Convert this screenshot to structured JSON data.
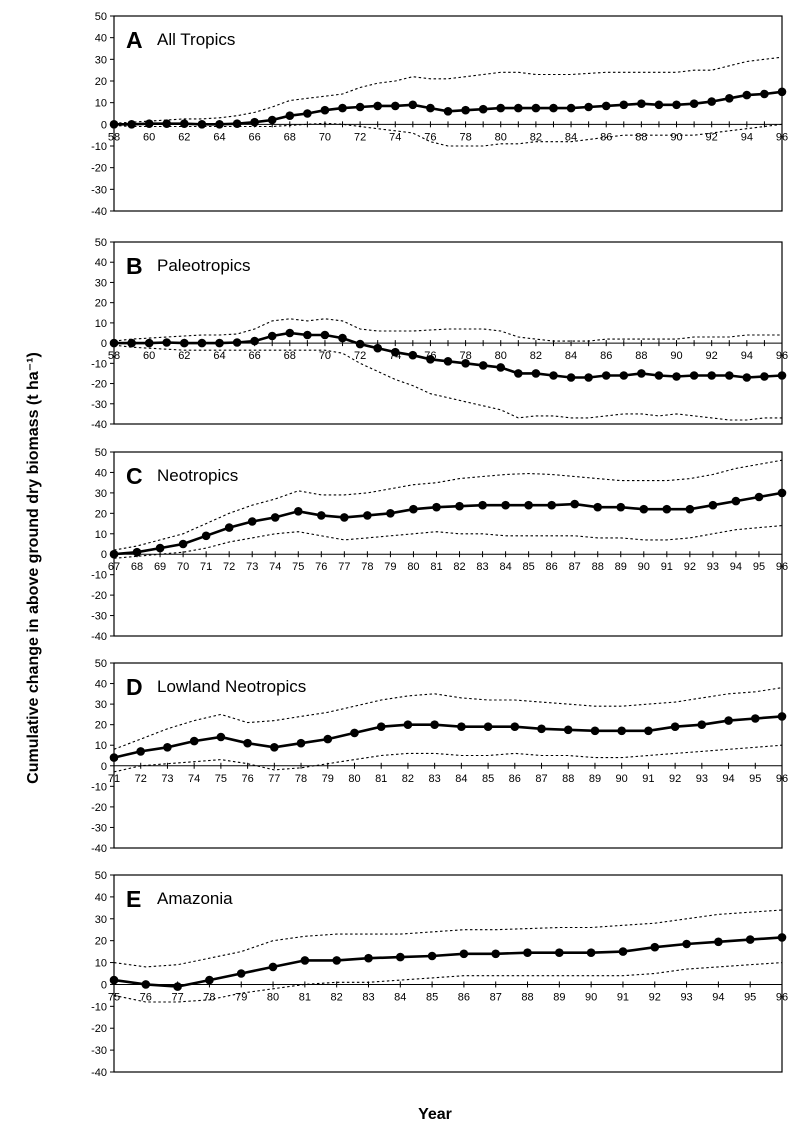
{
  "figure": {
    "ylabel": "Cumulative change in above ground dry biomass (t ha⁻¹)",
    "xlabel": "Year"
  },
  "chart_data": [
    {
      "type": "line",
      "letter": "A",
      "title": "All Tropics",
      "ylim": [
        -40,
        50
      ],
      "yticks": [
        -40,
        -30,
        -20,
        -10,
        0,
        10,
        20,
        30,
        40,
        50
      ],
      "x": [
        58,
        59,
        60,
        61,
        62,
        63,
        64,
        65,
        66,
        67,
        68,
        69,
        70,
        71,
        72,
        73,
        74,
        75,
        76,
        77,
        78,
        79,
        80,
        81,
        82,
        83,
        84,
        85,
        86,
        87,
        88,
        89,
        90,
        91,
        92,
        93,
        94,
        95,
        96
      ],
      "xtick_labels": [
        "58",
        "60",
        "62",
        "64",
        "66",
        "68",
        "70",
        "72",
        "74",
        "76",
        "78",
        "80",
        "82",
        "84",
        "86",
        "88",
        "90",
        "92",
        "94",
        "96"
      ],
      "series": [
        {
          "role": "mean",
          "style": "solid-markers",
          "values": [
            0,
            0,
            0.3,
            0.3,
            0.3,
            0,
            0,
            0.3,
            1,
            2,
            4,
            5,
            6.5,
            7.5,
            8,
            8.5,
            8.5,
            9,
            7.5,
            6,
            6.5,
            7,
            7.5,
            7.5,
            7.5,
            7.5,
            7.5,
            8,
            8.5,
            9,
            9.5,
            9,
            9,
            9.5,
            10.5,
            12,
            13.5,
            14,
            15
          ]
        },
        {
          "role": "upper",
          "style": "dotted",
          "values": [
            0.5,
            1,
            1.5,
            2,
            2.5,
            2.5,
            3,
            4,
            5.5,
            8,
            11,
            12,
            13,
            14,
            17,
            19,
            20,
            22,
            21,
            21,
            22,
            23,
            24,
            24,
            23,
            23,
            23,
            23.5,
            24,
            24,
            24,
            24,
            24,
            25,
            25,
            27,
            29,
            30,
            31
          ]
        },
        {
          "role": "lower",
          "style": "dotted",
          "values": [
            -0.5,
            -1,
            -1,
            -1,
            -1,
            -1,
            -1,
            -1,
            -1,
            -1,
            -0.5,
            0,
            0.5,
            0,
            -1,
            -2,
            -3,
            -4,
            -8,
            -10,
            -10,
            -10,
            -9,
            -9,
            -8,
            -8,
            -8,
            -7,
            -6,
            -5,
            -5,
            -5,
            -5,
            -5,
            -4,
            -3,
            -2,
            -1,
            0
          ]
        }
      ]
    },
    {
      "type": "line",
      "letter": "B",
      "title": "Paleotropics",
      "ylim": [
        -40,
        50
      ],
      "yticks": [
        -40,
        -30,
        -20,
        -10,
        0,
        10,
        20,
        30,
        40,
        50
      ],
      "x": [
        58,
        59,
        60,
        61,
        62,
        63,
        64,
        65,
        66,
        67,
        68,
        69,
        70,
        71,
        72,
        73,
        74,
        75,
        76,
        77,
        78,
        79,
        80,
        81,
        82,
        83,
        84,
        85,
        86,
        87,
        88,
        89,
        90,
        91,
        92,
        93,
        94,
        95,
        96
      ],
      "xtick_labels": [
        "58",
        "60",
        "62",
        "64",
        "66",
        "68",
        "70",
        "72",
        "74",
        "76",
        "78",
        "80",
        "82",
        "84",
        "86",
        "88",
        "90",
        "92",
        "94",
        "96"
      ],
      "series": [
        {
          "role": "mean",
          "style": "solid-markers",
          "values": [
            0,
            0,
            0,
            0.3,
            0,
            0,
            0,
            0.3,
            1,
            3.5,
            5,
            4,
            4,
            2.5,
            -0.5,
            -2.5,
            -4.5,
            -6,
            -8,
            -9,
            -10,
            -11,
            -12,
            -15,
            -15,
            -16,
            -17,
            -17,
            -16,
            -16,
            -15,
            -16,
            -16.5,
            -16,
            -16,
            -16,
            -17,
            -16.5,
            -16
          ]
        },
        {
          "role": "upper",
          "style": "dotted",
          "values": [
            1,
            2,
            2.5,
            3,
            3.5,
            4,
            4,
            4.5,
            7,
            11,
            12,
            11,
            12,
            11,
            7,
            6,
            6,
            6,
            6.5,
            7,
            7,
            7,
            6,
            3,
            2,
            1,
            1,
            1,
            2,
            2,
            2,
            2,
            2,
            3,
            3,
            3,
            4,
            4,
            4
          ]
        },
        {
          "role": "lower",
          "style": "dotted",
          "values": [
            -1,
            -2,
            -2.5,
            -3,
            -3.5,
            -3.5,
            -3.5,
            -3.5,
            -3.5,
            -3.5,
            -3.5,
            -3.5,
            -3.5,
            -5,
            -10,
            -14,
            -18,
            -21,
            -25,
            -27,
            -29,
            -31,
            -33,
            -37,
            -36,
            -36,
            -37,
            -37,
            -36,
            -35,
            -35,
            -36,
            -35,
            -36,
            -37,
            -38,
            -38,
            -37,
            -37
          ]
        }
      ]
    },
    {
      "type": "line",
      "letter": "C",
      "title": "Neotropics",
      "ylim": [
        -40,
        50
      ],
      "yticks": [
        -40,
        -30,
        -20,
        -10,
        0,
        10,
        20,
        30,
        40,
        50
      ],
      "x": [
        67,
        68,
        69,
        70,
        71,
        72,
        73,
        74,
        75,
        76,
        77,
        78,
        79,
        80,
        81,
        82,
        83,
        84,
        85,
        86,
        87,
        88,
        89,
        90,
        91,
        92,
        93,
        94,
        95,
        96
      ],
      "xtick_labels": [
        "67",
        "68",
        "69",
        "70",
        "71",
        "72",
        "73",
        "74",
        "75",
        "76",
        "77",
        "78",
        "79",
        "80",
        "81",
        "82",
        "83",
        "84",
        "85",
        "86",
        "87",
        "88",
        "89",
        "90",
        "91",
        "92",
        "93",
        "94",
        "95",
        "96"
      ],
      "series": [
        {
          "role": "mean",
          "style": "solid-markers",
          "values": [
            0,
            1,
            3,
            5,
            9,
            13,
            16,
            18,
            21,
            19,
            18,
            19,
            20,
            22,
            23,
            23.5,
            24,
            24,
            24,
            24,
            24.5,
            23,
            23,
            22,
            22,
            22,
            24,
            26,
            28,
            30
          ]
        },
        {
          "role": "upper",
          "style": "dotted",
          "values": [
            2,
            4,
            7,
            10,
            15,
            20,
            24,
            27,
            31,
            29,
            29,
            30,
            32,
            34,
            35,
            37,
            38,
            39,
            39.5,
            39,
            38,
            37,
            36,
            36,
            36,
            37,
            39,
            42,
            44,
            46
          ]
        },
        {
          "role": "lower",
          "style": "dotted",
          "values": [
            -2,
            -1,
            0,
            1,
            3,
            6,
            8,
            10,
            11,
            9,
            7,
            8,
            9,
            10,
            11,
            10,
            10,
            9,
            9,
            9,
            9,
            8,
            8,
            7,
            7,
            8,
            10,
            12,
            13,
            14
          ]
        }
      ]
    },
    {
      "type": "line",
      "letter": "D",
      "title": "Lowland Neotropics",
      "ylim": [
        -40,
        50
      ],
      "yticks": [
        -40,
        -30,
        -20,
        -10,
        0,
        10,
        20,
        30,
        40,
        50
      ],
      "x": [
        71,
        72,
        73,
        74,
        75,
        76,
        77,
        78,
        79,
        80,
        81,
        82,
        83,
        84,
        85,
        86,
        87,
        88,
        89,
        90,
        91,
        92,
        93,
        94,
        95,
        96
      ],
      "xtick_labels": [
        "71",
        "72",
        "73",
        "74",
        "75",
        "76",
        "77",
        "78",
        "79",
        "80",
        "81",
        "82",
        "83",
        "84",
        "85",
        "86",
        "87",
        "88",
        "89",
        "90",
        "91",
        "92",
        "93",
        "94",
        "95",
        "96"
      ],
      "series": [
        {
          "role": "mean",
          "style": "solid-markers",
          "values": [
            4,
            7,
            9,
            12,
            14,
            11,
            9,
            11,
            13,
            16,
            19,
            20,
            20,
            19,
            19,
            19,
            18,
            17.5,
            17,
            17,
            17,
            19,
            20,
            22,
            23,
            24
          ]
        },
        {
          "role": "upper",
          "style": "dotted",
          "values": [
            8,
            13,
            18,
            22,
            25,
            21,
            22,
            24,
            26,
            29,
            32,
            34,
            35,
            33,
            32,
            32,
            31,
            30,
            29,
            29,
            30,
            31,
            33,
            35,
            36,
            38
          ]
        },
        {
          "role": "lower",
          "style": "dotted",
          "values": [
            -3,
            0,
            1,
            2,
            3,
            1,
            -2,
            -1,
            1,
            3,
            5,
            6,
            6,
            5,
            5,
            6,
            5,
            5,
            4,
            4,
            5,
            6,
            7,
            8,
            9,
            10
          ]
        }
      ]
    },
    {
      "type": "line",
      "letter": "E",
      "title": "Amazonia",
      "ylim": [
        -40,
        50
      ],
      "yticks": [
        -40,
        -30,
        -20,
        -10,
        0,
        10,
        20,
        30,
        40,
        50
      ],
      "x": [
        75,
        76,
        77,
        78,
        79,
        80,
        81,
        82,
        83,
        84,
        85,
        86,
        87,
        88,
        89,
        90,
        91,
        92,
        93,
        94,
        95,
        96
      ],
      "xtick_labels": [
        "75",
        "76",
        "77",
        "78",
        "79",
        "80",
        "81",
        "82",
        "83",
        "84",
        "85",
        "86",
        "87",
        "88",
        "89",
        "90",
        "91",
        "92",
        "93",
        "94",
        "95",
        "96"
      ],
      "series": [
        {
          "role": "mean",
          "style": "solid-markers",
          "values": [
            2,
            0,
            -1,
            2,
            5,
            8,
            11,
            11,
            12,
            12.5,
            13,
            14,
            14,
            14.5,
            14.5,
            14.5,
            15,
            17,
            18.5,
            19.5,
            20.5,
            21.5
          ]
        },
        {
          "role": "upper",
          "style": "dotted",
          "values": [
            10,
            8,
            9,
            12,
            15,
            20,
            22,
            23,
            23,
            23,
            24,
            25,
            25,
            25.5,
            26,
            26,
            27,
            28,
            30,
            32,
            33,
            34
          ]
        },
        {
          "role": "lower",
          "style": "dotted",
          "values": [
            -5,
            -8,
            -8,
            -7,
            -4,
            -2,
            0,
            1,
            1,
            2,
            3,
            4,
            4,
            4,
            4,
            4,
            4,
            5,
            7,
            8,
            9,
            10
          ]
        }
      ]
    }
  ]
}
